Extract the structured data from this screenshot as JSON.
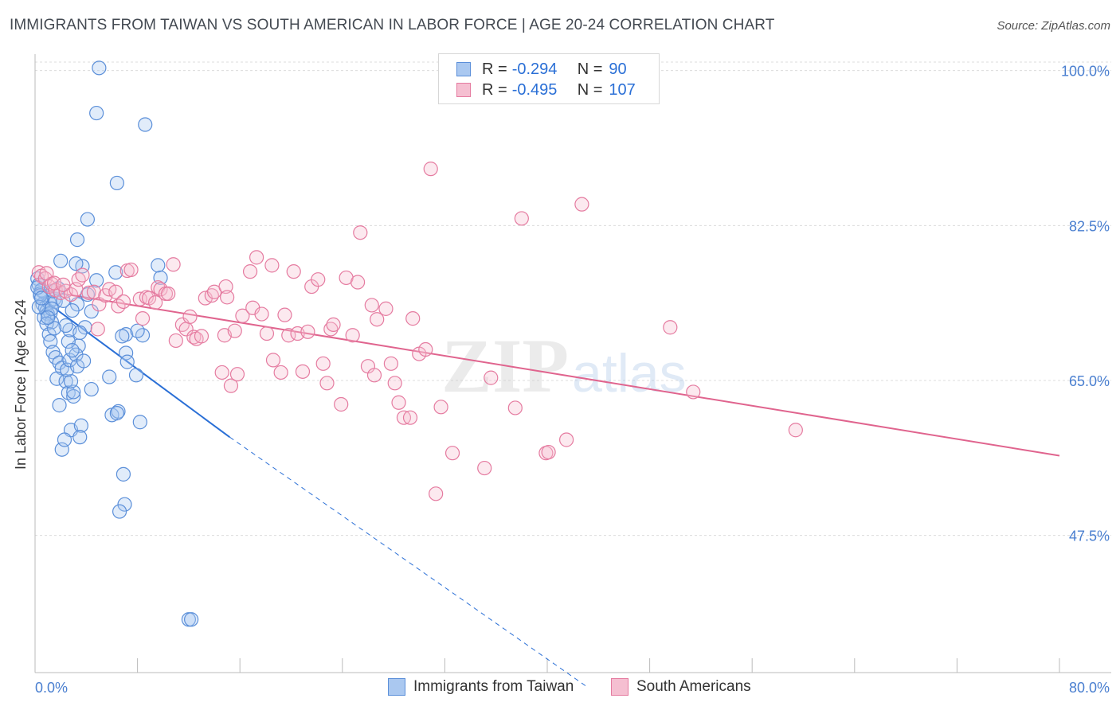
{
  "title": "IMMIGRANTS FROM TAIWAN VS SOUTH AMERICAN IN LABOR FORCE | AGE 20-24 CORRELATION CHART",
  "source": "Source: ZipAtlas.com",
  "watermark": {
    "zip": "ZIP",
    "atlas": "atlas"
  },
  "colors": {
    "blue": "#5b8fd9",
    "blue_fill": "#aac8f0",
    "blue_line": "#2a6fd6",
    "pink": "#e57ba0",
    "pink_fill": "#f5bfd1",
    "pink_line": "#e0648e",
    "axis_text": "#4a7fd0"
  },
  "legend_top": {
    "rows": [
      {
        "r_label": "R =",
        "r_value": "-0.294",
        "n_label": "N =",
        "n_value": "90"
      },
      {
        "r_label": "R =",
        "r_value": "-0.495",
        "n_label": "N =",
        "n_value": "107"
      }
    ]
  },
  "legend_bottom": [
    "Immigrants from Taiwan",
    "South Americans"
  ],
  "chart_data": {
    "type": "scatter",
    "title": "IMMIGRANTS FROM TAIWAN VS SOUTH AMERICAN IN LABOR FORCE | AGE 20-24 CORRELATION CHART",
    "xlabel": "",
    "ylabel": "In Labor Force | Age 20-24",
    "xlim": [
      0,
      80
    ],
    "ylim": [
      32,
      101.5
    ],
    "x_tick_labels": [
      "0.0%",
      "80.0%"
    ],
    "y_tick_labels": [
      "100.0%",
      "82.5%",
      "65.0%",
      "47.5%"
    ],
    "y_ticks": [
      100,
      82.5,
      65,
      47.5
    ],
    "grid": true,
    "series": [
      {
        "name": "Immigrants from Taiwan",
        "color": "#5b8fd9",
        "r": -0.294,
        "n": 90,
        "trend": {
          "x": [
            0,
            15.2
          ],
          "y": [
            74.8,
            58.6
          ],
          "dashed_to": {
            "x": 43,
            "y": 30.5
          }
        },
        "points": [
          [
            0.2,
            76.5
          ],
          [
            0.3,
            75.8
          ],
          [
            0.5,
            75.2
          ],
          [
            0.4,
            74.8
          ],
          [
            0.6,
            73.6
          ],
          [
            0.8,
            73.2
          ],
          [
            0.9,
            72.8
          ],
          [
            1.0,
            72.5
          ],
          [
            1.1,
            73.8
          ],
          [
            1.2,
            72.6
          ],
          [
            0.7,
            72.1
          ],
          [
            1.3,
            71.6
          ],
          [
            1.5,
            74.2
          ],
          [
            1.6,
            73.9
          ],
          [
            1.4,
            75.1
          ],
          [
            1.8,
            75.4
          ],
          [
            0.9,
            71.4
          ],
          [
            1.1,
            70.2
          ],
          [
            1.2,
            69.4
          ],
          [
            1.4,
            68.2
          ],
          [
            1.6,
            67.6
          ],
          [
            1.9,
            67.0
          ],
          [
            2.1,
            66.4
          ],
          [
            1.7,
            65.2
          ],
          [
            2.4,
            64.9
          ],
          [
            2.6,
            63.6
          ],
          [
            1.9,
            62.2
          ],
          [
            2.8,
            59.4
          ],
          [
            2.1,
            57.2
          ],
          [
            2.3,
            58.3
          ],
          [
            3.6,
            59.9
          ],
          [
            3.5,
            58.6
          ],
          [
            3.4,
            68.9
          ],
          [
            3.3,
            73.6
          ],
          [
            2.9,
            72.9
          ],
          [
            3.9,
            71.0
          ],
          [
            4.4,
            72.8
          ],
          [
            4.1,
            74.7
          ],
          [
            4.8,
            76.3
          ],
          [
            3.7,
            77.9
          ],
          [
            3.2,
            78.2
          ],
          [
            2.0,
            78.5
          ],
          [
            3.3,
            80.9
          ],
          [
            4.1,
            83.2
          ],
          [
            6.4,
            87.3
          ],
          [
            4.8,
            95.2
          ],
          [
            5.0,
            100.3
          ],
          [
            8.6,
            93.9
          ],
          [
            9.6,
            78.0
          ],
          [
            9.8,
            76.6
          ],
          [
            6.3,
            77.2
          ],
          [
            7.1,
            70.2
          ],
          [
            6.8,
            70.0
          ],
          [
            8.4,
            70.1
          ],
          [
            8.0,
            70.6
          ],
          [
            7.1,
            68.1
          ],
          [
            7.2,
            67.1
          ],
          [
            7.9,
            65.6
          ],
          [
            5.8,
            65.4
          ],
          [
            4.4,
            64.0
          ],
          [
            3.0,
            63.2
          ],
          [
            3.0,
            63.7
          ],
          [
            2.8,
            64.9
          ],
          [
            2.5,
            66.2
          ],
          [
            2.7,
            67.3
          ],
          [
            3.2,
            67.9
          ],
          [
            3.3,
            66.6
          ],
          [
            2.6,
            69.4
          ],
          [
            2.7,
            70.7
          ],
          [
            3.5,
            70.4
          ],
          [
            2.4,
            71.2
          ],
          [
            1.5,
            70.9
          ],
          [
            1.3,
            73.1
          ],
          [
            0.4,
            74.6
          ],
          [
            0.3,
            73.3
          ],
          [
            1.0,
            72.1
          ],
          [
            6.0,
            61.1
          ],
          [
            6.5,
            61.5
          ],
          [
            6.4,
            61.3
          ],
          [
            8.2,
            60.3
          ],
          [
            6.9,
            54.4
          ],
          [
            7.0,
            51.0
          ],
          [
            6.6,
            50.2
          ],
          [
            12.0,
            38.0
          ],
          [
            12.2,
            38.0
          ],
          [
            2.2,
            74.0
          ],
          [
            0.2,
            75.5
          ],
          [
            0.5,
            74.3
          ],
          [
            3.8,
            67.2
          ],
          [
            2.9,
            68.4
          ]
        ]
      },
      {
        "name": "South Americans",
        "color": "#e57ba0",
        "r": -0.495,
        "n": 107,
        "trend": {
          "x": [
            0,
            80
          ],
          "y": [
            75.3,
            56.5
          ]
        },
        "points": [
          [
            0.3,
            77.2
          ],
          [
            0.5,
            76.8
          ],
          [
            0.8,
            76.5
          ],
          [
            1.1,
            75.6
          ],
          [
            1.3,
            75.9
          ],
          [
            1.6,
            75.2
          ],
          [
            2.0,
            74.9
          ],
          [
            2.4,
            75.1
          ],
          [
            2.8,
            74.7
          ],
          [
            3.2,
            75.3
          ],
          [
            3.4,
            76.4
          ],
          [
            3.7,
            76.9
          ],
          [
            4.2,
            74.9
          ],
          [
            4.6,
            75.0
          ],
          [
            5.0,
            73.6
          ],
          [
            5.5,
            74.6
          ],
          [
            5.8,
            75.3
          ],
          [
            6.3,
            75.0
          ],
          [
            6.5,
            73.4
          ],
          [
            6.9,
            73.9
          ],
          [
            7.2,
            77.4
          ],
          [
            7.5,
            77.5
          ],
          [
            8.2,
            74.2
          ],
          [
            8.4,
            72.0
          ],
          [
            8.7,
            74.4
          ],
          [
            8.9,
            74.3
          ],
          [
            9.4,
            73.8
          ],
          [
            9.6,
            75.5
          ],
          [
            9.8,
            75.3
          ],
          [
            10.2,
            74.8
          ],
          [
            10.4,
            74.8
          ],
          [
            10.8,
            78.1
          ],
          [
            11.0,
            69.5
          ],
          [
            11.5,
            71.3
          ],
          [
            11.8,
            70.8
          ],
          [
            12.1,
            72.2
          ],
          [
            12.4,
            69.9
          ],
          [
            12.6,
            69.7
          ],
          [
            13.0,
            70.0
          ],
          [
            13.3,
            74.3
          ],
          [
            13.8,
            74.6
          ],
          [
            14.0,
            75.0
          ],
          [
            14.6,
            65.9
          ],
          [
            14.8,
            70.1
          ],
          [
            14.9,
            75.6
          ],
          [
            15.3,
            64.4
          ],
          [
            15.6,
            70.6
          ],
          [
            15.8,
            65.7
          ],
          [
            16.2,
            72.3
          ],
          [
            16.8,
            77.3
          ],
          [
            17.0,
            73.2
          ],
          [
            17.3,
            78.9
          ],
          [
            17.7,
            72.5
          ],
          [
            18.1,
            70.3
          ],
          [
            18.5,
            78.0
          ],
          [
            18.6,
            67.3
          ],
          [
            19.2,
            65.9
          ],
          [
            19.5,
            72.4
          ],
          [
            19.8,
            70.1
          ],
          [
            20.2,
            77.3
          ],
          [
            20.5,
            70.3
          ],
          [
            20.9,
            66.0
          ],
          [
            21.3,
            70.5
          ],
          [
            21.6,
            75.6
          ],
          [
            22.1,
            76.4
          ],
          [
            22.5,
            66.9
          ],
          [
            22.8,
            64.7
          ],
          [
            23.1,
            70.8
          ],
          [
            23.3,
            71.3
          ],
          [
            23.9,
            62.3
          ],
          [
            24.3,
            76.6
          ],
          [
            25.2,
            76.1
          ],
          [
            25.4,
            81.7
          ],
          [
            26.0,
            66.6
          ],
          [
            26.3,
            73.5
          ],
          [
            26.5,
            65.6
          ],
          [
            26.7,
            71.9
          ],
          [
            27.4,
            73.1
          ],
          [
            27.8,
            66.9
          ],
          [
            28.1,
            64.7
          ],
          [
            28.4,
            62.5
          ],
          [
            28.8,
            60.8
          ],
          [
            29.3,
            60.8
          ],
          [
            29.5,
            72.0
          ],
          [
            30.0,
            68.0
          ],
          [
            30.5,
            68.5
          ],
          [
            30.9,
            88.9
          ],
          [
            31.3,
            52.2
          ],
          [
            31.7,
            62.0
          ],
          [
            32.6,
            56.8
          ],
          [
            35.1,
            55.1
          ],
          [
            35.6,
            65.3
          ],
          [
            37.5,
            61.9
          ],
          [
            38.0,
            83.3
          ],
          [
            39.9,
            56.8
          ],
          [
            40.1,
            56.9
          ],
          [
            41.5,
            58.3
          ],
          [
            42.7,
            84.9
          ],
          [
            49.6,
            71.0
          ],
          [
            51.4,
            63.7
          ],
          [
            59.4,
            59.4
          ],
          [
            0.9,
            77.1
          ],
          [
            1.5,
            76.0
          ],
          [
            2.2,
            75.8
          ],
          [
            4.9,
            70.8
          ],
          [
            15.0,
            74.4
          ],
          [
            24.8,
            70.1
          ]
        ]
      }
    ]
  }
}
